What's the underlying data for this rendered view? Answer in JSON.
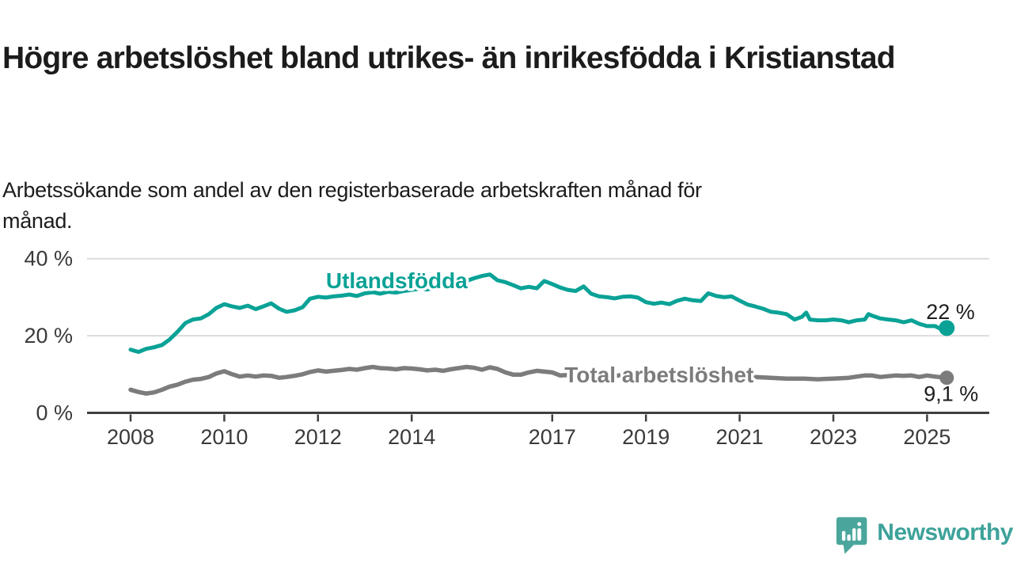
{
  "header": {
    "title": "Högre arbetslöshet bland utrikes- än inrikesfödda i Kristianstad",
    "subtitle_lines": [
      "Arbetssökande som andel av den registerbaserade arbetskraften månad för",
      "månad."
    ]
  },
  "footer": {
    "brand": "Newsworthy",
    "logo_icon": "speech-bubble-bar-chart-icon",
    "brand_color": "#3da29a",
    "logo_color": "#4aa69c"
  },
  "chart_data": {
    "type": "line",
    "title": "Högre arbetslöshet bland utrikes- än inrikesfödda i Kristianstad",
    "subtitle": "Arbetssökande som andel av den registerbaserade arbetskraften månad för månad.",
    "unit": "%",
    "grid": "horizontal-only",
    "legend_position": "inline-on-line",
    "x_axis": {
      "range": [
        2007.9,
        2026.4
      ],
      "ticks": [
        {
          "v": 2008,
          "label": "2008"
        },
        {
          "v": 2010,
          "label": "2010"
        },
        {
          "v": 2012,
          "label": "2012"
        },
        {
          "v": 2014,
          "label": "2014"
        },
        {
          "v": 2017,
          "label": "2017"
        },
        {
          "v": 2019,
          "label": "2019"
        },
        {
          "v": 2021,
          "label": "2021"
        },
        {
          "v": 2023,
          "label": "2023"
        },
        {
          "v": 2025,
          "label": "2025"
        }
      ]
    },
    "y_axis": {
      "range": [
        0,
        41
      ],
      "ticks": [
        {
          "v": 0,
          "label": "0 %"
        },
        {
          "v": 20,
          "label": "20 %"
        },
        {
          "v": 40,
          "label": "40 %"
        }
      ]
    },
    "colors": {
      "grid": "#dcdcdc",
      "axis": "#3f3f3f",
      "annotation": "#1d1d1d"
    },
    "annotations": [
      {
        "text": "22 %",
        "x": 2024.98,
        "y": 24.3
      },
      {
        "text": "9,1 %",
        "x": 2024.93,
        "y": 3.1
      }
    ],
    "series": [
      {
        "name": "Total arbetslöshet",
        "color": "#7c7c7c",
        "line_width": 5.5,
        "end_dot_r": 9,
        "line_label": {
          "text": "Total arbetslöshet",
          "x": 2017.26,
          "y": 7.9
        },
        "end_value_label": "9,1 %",
        "points": [
          [
            2008,
            6
          ],
          [
            2008.17,
            5.4
          ],
          [
            2008.33,
            5
          ],
          [
            2008.5,
            5.3
          ],
          [
            2008.67,
            6
          ],
          [
            2008.83,
            6.8
          ],
          [
            2009,
            7.3
          ],
          [
            2009.17,
            8.1
          ],
          [
            2009.33,
            8.6
          ],
          [
            2009.5,
            8.8
          ],
          [
            2009.67,
            9.3
          ],
          [
            2009.83,
            10.2
          ],
          [
            2010,
            10.8
          ],
          [
            2010.17,
            10
          ],
          [
            2010.33,
            9.4
          ],
          [
            2010.5,
            9.7
          ],
          [
            2010.67,
            9.4
          ],
          [
            2010.83,
            9.7
          ],
          [
            2011,
            9.6
          ],
          [
            2011.17,
            9.1
          ],
          [
            2011.33,
            9.3
          ],
          [
            2011.5,
            9.6
          ],
          [
            2011.67,
            10
          ],
          [
            2011.83,
            10.6
          ],
          [
            2012,
            11
          ],
          [
            2012.17,
            10.7
          ],
          [
            2012.33,
            10.9
          ],
          [
            2012.5,
            11.1
          ],
          [
            2012.67,
            11.4
          ],
          [
            2012.83,
            11.2
          ],
          [
            2013,
            11.6
          ],
          [
            2013.17,
            11.9
          ],
          [
            2013.33,
            11.6
          ],
          [
            2013.5,
            11.5
          ],
          [
            2013.67,
            11.3
          ],
          [
            2013.83,
            11.6
          ],
          [
            2014,
            11.5
          ],
          [
            2014.17,
            11.3
          ],
          [
            2014.33,
            11
          ],
          [
            2014.5,
            11.2
          ],
          [
            2014.67,
            10.9
          ],
          [
            2014.83,
            11.3
          ],
          [
            2015,
            11.6
          ],
          [
            2015.17,
            11.9
          ],
          [
            2015.33,
            11.7
          ],
          [
            2015.5,
            11.2
          ],
          [
            2015.67,
            11.8
          ],
          [
            2015.83,
            11.4
          ],
          [
            2016,
            10.5
          ],
          [
            2016.17,
            9.9
          ],
          [
            2016.33,
            9.9
          ],
          [
            2016.5,
            10.5
          ],
          [
            2016.67,
            10.9
          ],
          [
            2016.83,
            10.7
          ],
          [
            2017,
            10.5
          ],
          [
            2017.17,
            9.7
          ],
          [
            2017.33,
            9.8
          ],
          [
            2017.5,
            10
          ],
          [
            2017.67,
            10.2
          ],
          [
            2017.83,
            9.9
          ],
          [
            2018,
            9.7
          ],
          [
            2018.17,
            9.5
          ],
          [
            2018.33,
            9.6
          ],
          [
            2018.5,
            9.8
          ],
          [
            2018.67,
            9.7
          ],
          [
            2018.83,
            9.5
          ],
          [
            2019,
            9.3
          ],
          [
            2019.17,
            9.2
          ],
          [
            2019.33,
            9.4
          ],
          [
            2019.5,
            9.3
          ],
          [
            2019.67,
            9.5
          ],
          [
            2019.83,
            9.6
          ],
          [
            2020,
            9.5
          ],
          [
            2020.17,
            9.7
          ],
          [
            2020.33,
            10.4
          ],
          [
            2020.5,
            10.2
          ],
          [
            2020.67,
            10
          ],
          [
            2020.83,
            9.8
          ],
          [
            2021,
            9.6
          ],
          [
            2021.17,
            9.4
          ],
          [
            2021.33,
            9.3
          ],
          [
            2021.5,
            9.2
          ],
          [
            2021.67,
            9.1
          ],
          [
            2021.83,
            9
          ],
          [
            2022,
            8.9
          ],
          [
            2022.17,
            8.9
          ],
          [
            2022.33,
            8.9
          ],
          [
            2022.5,
            8.8
          ],
          [
            2022.67,
            8.7
          ],
          [
            2022.83,
            8.8
          ],
          [
            2023,
            8.9
          ],
          [
            2023.17,
            9
          ],
          [
            2023.33,
            9.1
          ],
          [
            2023.5,
            9.4
          ],
          [
            2023.67,
            9.7
          ],
          [
            2023.83,
            9.7
          ],
          [
            2024,
            9.3
          ],
          [
            2024.17,
            9.5
          ],
          [
            2024.33,
            9.7
          ],
          [
            2024.5,
            9.6
          ],
          [
            2024.67,
            9.7
          ],
          [
            2024.83,
            9.3
          ],
          [
            2025,
            9.7
          ],
          [
            2025.17,
            9.4
          ],
          [
            2025.33,
            9.2
          ],
          [
            2025.42,
            9.1
          ]
        ]
      },
      {
        "name": "Utlandsfödda",
        "color": "#0aa296",
        "line_width": 5,
        "end_dot_r": 10,
        "line_label": {
          "text": "Utlandsfödda",
          "x": 2012.17,
          "y": 32.3
        },
        "end_value_label": "22 %",
        "points": [
          [
            2008,
            16.4
          ],
          [
            2008.17,
            15.8
          ],
          [
            2008.33,
            16.6
          ],
          [
            2008.5,
            17
          ],
          [
            2008.67,
            17.6
          ],
          [
            2008.83,
            19
          ],
          [
            2009,
            21
          ],
          [
            2009.17,
            23.3
          ],
          [
            2009.33,
            24.2
          ],
          [
            2009.5,
            24.5
          ],
          [
            2009.67,
            25.6
          ],
          [
            2009.83,
            27.2
          ],
          [
            2010,
            28.2
          ],
          [
            2010.17,
            27.6
          ],
          [
            2010.33,
            27.2
          ],
          [
            2010.5,
            27.8
          ],
          [
            2010.67,
            26.9
          ],
          [
            2010.83,
            27.6
          ],
          [
            2011,
            28.4
          ],
          [
            2011.17,
            27
          ],
          [
            2011.33,
            26.2
          ],
          [
            2011.5,
            26.6
          ],
          [
            2011.67,
            27.4
          ],
          [
            2011.83,
            29.6
          ],
          [
            2012,
            30.1
          ],
          [
            2012.17,
            29.9
          ],
          [
            2012.33,
            30.2
          ],
          [
            2012.5,
            30.4
          ],
          [
            2012.67,
            30.7
          ],
          [
            2012.83,
            30.3
          ],
          [
            2013,
            31
          ],
          [
            2013.17,
            31.3
          ],
          [
            2013.33,
            30.9
          ],
          [
            2013.5,
            31.4
          ],
          [
            2013.67,
            31.2
          ],
          [
            2013.83,
            31.6
          ],
          [
            2014,
            31.9
          ],
          [
            2014.17,
            32.2
          ],
          [
            2014.33,
            32
          ],
          [
            2014.5,
            32.5
          ],
          [
            2014.67,
            32.8
          ],
          [
            2014.83,
            33.2
          ],
          [
            2015,
            33.6
          ],
          [
            2015.17,
            34.2
          ],
          [
            2015.33,
            34.9
          ],
          [
            2015.5,
            35.5
          ],
          [
            2015.67,
            35.9
          ],
          [
            2015.83,
            34.4
          ],
          [
            2016,
            33.9
          ],
          [
            2016.17,
            33.1
          ],
          [
            2016.33,
            32.3
          ],
          [
            2016.5,
            32.7
          ],
          [
            2016.67,
            32.3
          ],
          [
            2016.83,
            34.2
          ],
          [
            2017,
            33.4
          ],
          [
            2017.17,
            32.5
          ],
          [
            2017.33,
            31.9
          ],
          [
            2017.5,
            31.6
          ],
          [
            2017.67,
            32.8
          ],
          [
            2017.83,
            30.9
          ],
          [
            2018,
            30.2
          ],
          [
            2018.17,
            30
          ],
          [
            2018.33,
            29.7
          ],
          [
            2018.5,
            30.1
          ],
          [
            2018.67,
            30.2
          ],
          [
            2018.83,
            29.9
          ],
          [
            2019,
            28.7
          ],
          [
            2019.17,
            28.3
          ],
          [
            2019.33,
            28.6
          ],
          [
            2019.5,
            28.2
          ],
          [
            2019.67,
            29.1
          ],
          [
            2019.83,
            29.6
          ],
          [
            2020,
            29.2
          ],
          [
            2020.17,
            29
          ],
          [
            2020.33,
            31
          ],
          [
            2020.5,
            30.3
          ],
          [
            2020.67,
            30
          ],
          [
            2020.83,
            30.2
          ],
          [
            2021,
            29.1
          ],
          [
            2021.17,
            28.1
          ],
          [
            2021.33,
            27.6
          ],
          [
            2021.5,
            27
          ],
          [
            2021.67,
            26.2
          ],
          [
            2021.83,
            26
          ],
          [
            2022,
            25.6
          ],
          [
            2022.17,
            24.2
          ],
          [
            2022.33,
            24.9
          ],
          [
            2022.42,
            26
          ],
          [
            2022.5,
            24.2
          ],
          [
            2022.67,
            24
          ],
          [
            2022.83,
            24
          ],
          [
            2023,
            24.2
          ],
          [
            2023.17,
            24
          ],
          [
            2023.33,
            23.5
          ],
          [
            2023.5,
            24
          ],
          [
            2023.67,
            24.2
          ],
          [
            2023.75,
            25.6
          ],
          [
            2023.83,
            25.2
          ],
          [
            2024,
            24.5
          ],
          [
            2024.17,
            24.2
          ],
          [
            2024.33,
            24
          ],
          [
            2024.5,
            23.5
          ],
          [
            2024.67,
            24
          ],
          [
            2024.83,
            23.1
          ],
          [
            2025,
            22.5
          ],
          [
            2025.17,
            22.5
          ],
          [
            2025.33,
            21.5
          ],
          [
            2025.42,
            22
          ]
        ]
      }
    ]
  }
}
